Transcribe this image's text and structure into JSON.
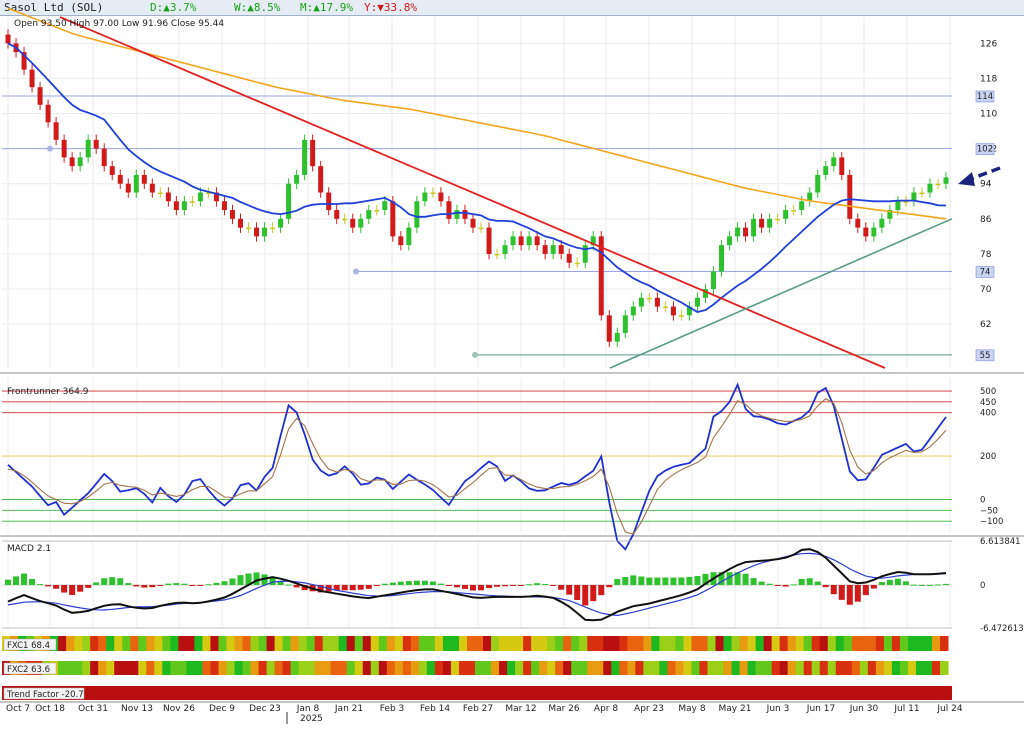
{
  "header": {
    "ticker": "Sasol Ltd (SOL)",
    "day": "D:▲3.7%",
    "week": "W:▲8.5%",
    "month": "M:▲17.9%",
    "year": "Y:▼33.8%"
  },
  "ohlc_line": "Open 93.50  High 97.00  Low 91.96  Close 95.44",
  "colors": {
    "bull": "#2ec12e",
    "bear": "#d11a1a",
    "doji": "#c8c81e",
    "ma_short": "#1f3fd6",
    "ma_long": "#f4a51c",
    "trend_red": "#e02222",
    "trend_green": "#5a9a87"
  },
  "chart_data": [
    {
      "type": "candlestick",
      "title": "Sasol Ltd (SOL)",
      "ylim": [
        52,
        132
      ],
      "y_ticks": [
        126,
        118,
        110,
        102,
        94,
        86,
        78,
        70,
        62
      ],
      "close_approx": [
        126,
        124,
        120,
        116,
        112,
        108,
        104,
        100,
        98,
        100,
        104,
        102,
        98,
        96,
        94,
        92,
        96,
        94,
        92,
        92,
        90,
        88,
        90,
        90,
        92,
        92,
        90,
        88,
        86,
        84,
        84,
        82,
        84,
        84,
        86,
        94,
        96,
        104,
        98,
        92,
        88,
        86,
        86,
        84,
        86,
        88,
        88,
        90,
        82,
        80,
        84,
        90,
        92,
        92,
        90,
        86,
        88,
        86,
        84,
        84,
        78,
        78,
        80,
        82,
        80,
        82,
        80,
        78,
        80,
        78,
        76,
        76,
        80,
        82,
        64,
        58,
        60,
        64,
        66,
        68,
        68,
        66,
        66,
        64,
        64,
        66,
        68,
        70,
        74,
        80,
        82,
        84,
        82,
        86,
        84,
        86,
        86,
        88,
        88,
        90,
        92,
        96,
        98,
        100,
        96,
        86,
        84,
        82,
        84,
        86,
        88,
        90,
        90,
        92,
        92,
        94,
        94,
        95.44
      ],
      "highlight_levels": [
        {
          "label": "114",
          "value": 114
        },
        {
          "label": "102",
          "value": 102
        },
        {
          "label": "74",
          "value": 74
        },
        {
          "label": "55",
          "value": 55
        }
      ],
      "moving_averages": [
        {
          "name": "short",
          "color": "#1f3fd6"
        },
        {
          "name": "long",
          "color": "#f4a51c"
        }
      ],
      "annotations": [
        "blue arrow pointing at last price"
      ]
    },
    {
      "type": "line",
      "title": "Frontrunner 364.9",
      "ylim": [
        -150,
        560
      ],
      "y_ticks": [
        500,
        450,
        400,
        200,
        0,
        -50,
        -100
      ],
      "levels": [
        500,
        450,
        400,
        200,
        0,
        -50,
        -100
      ],
      "series": [
        {
          "name": "Frontrunner",
          "values": [
            160,
            120,
            80,
            40,
            -30,
            -10,
            -80,
            -20,
            10,
            60,
            120,
            80,
            20,
            60,
            40,
            -20,
            60,
            0,
            -20,
            80,
            100,
            40,
            -10,
            -40,
            60,
            80,
            40,
            120,
            160,
            440,
            420,
            300,
            160,
            120,
            100,
            160,
            120,
            60,
            80,
            120,
            40,
            80,
            120,
            80,
            60,
            20,
            -30,
            40,
            100,
            120,
            180,
            160,
            80,
            120,
            60,
            40,
            40,
            60,
            80,
            60,
            100,
            120,
            200,
            -60,
            -260,
            -200,
            -80,
            40,
            120,
            140,
            160,
            160,
            200,
            240,
            440,
            380,
            560,
            420,
            380,
            380,
            360,
            340,
            360,
            380,
            420,
            540,
            480,
            300,
            120,
            80,
            100,
            200,
            220,
            240,
            260,
            200,
            260,
            320,
            380
          ]
        },
        {
          "name": "Signal",
          "values": [
            140,
            130,
            100,
            60,
            20,
            0,
            -20,
            -20,
            0,
            30,
            70,
            80,
            60,
            60,
            50,
            20,
            30,
            20,
            10,
            40,
            60,
            60,
            30,
            0,
            20,
            40,
            40,
            80,
            120,
            300,
            380,
            340,
            240,
            160,
            120,
            140,
            130,
            90,
            80,
            100,
            70,
            70,
            90,
            90,
            80,
            50,
            10,
            20,
            60,
            90,
            140,
            150,
            110,
            110,
            80,
            60,
            50,
            50,
            60,
            60,
            80,
            100,
            140,
            40,
            -120,
            -180,
            -120,
            -30,
            60,
            100,
            130,
            150,
            170,
            200,
            320,
            350,
            460,
            440,
            400,
            380,
            370,
            360,
            360,
            370,
            390,
            460,
            470,
            370,
            220,
            130,
            110,
            160,
            190,
            210,
            230,
            210,
            230,
            270,
            320
          ]
        }
      ]
    },
    {
      "type": "line",
      "title": "MACD 2.1",
      "y_ticks": [
        "6.613841",
        "0",
        "-6.472613"
      ],
      "ylim": [
        -6.472613,
        6.613841
      ],
      "series": [
        {
          "name": "MACD",
          "values": [
            -2.5,
            -1.5,
            -2.4,
            -3.0,
            -4.2,
            -4.0,
            -3.2,
            -2.8,
            -3.4,
            -3.6,
            -3.0,
            -2.6,
            -2.8,
            -2.4,
            -1.8,
            -0.5,
            0.8,
            1.2,
            0.6,
            -0.2,
            -0.9,
            -1.3,
            -1.7,
            -2.0,
            -1.6,
            -1.2,
            -0.8,
            -0.6,
            -1.0,
            -1.5,
            -2.0,
            -1.8,
            -1.8,
            -1.8,
            -1.6,
            -2.0,
            -3.4,
            -5.4,
            -5.2,
            -4.0,
            -3.2,
            -2.8,
            -2.2,
            -1.6,
            -0.8,
            0.8,
            2.2,
            3.4,
            3.6,
            3.8,
            4.2,
            5.6,
            4.8,
            2.5,
            0.2,
            0.4,
            1.4,
            2.0,
            1.6,
            1.6,
            1.8
          ]
        },
        {
          "name": "Signal",
          "values": [
            -3.0,
            -2.6,
            -2.5,
            -2.7,
            -3.2,
            -3.6,
            -3.8,
            -3.6,
            -3.3,
            -3.3,
            -3.1,
            -2.8,
            -2.7,
            -2.5,
            -2.2,
            -1.5,
            -0.4,
            0.5,
            0.6,
            0.3,
            -0.2,
            -0.8,
            -1.2,
            -1.6,
            -1.7,
            -1.5,
            -1.2,
            -1.0,
            -1.0,
            -1.2,
            -1.4,
            -1.6,
            -1.7,
            -1.8,
            -1.8,
            -1.9,
            -2.4,
            -3.4,
            -4.3,
            -4.6,
            -4.1,
            -3.5,
            -2.9,
            -2.3,
            -1.6,
            -0.4,
            1.0,
            2.2,
            3.2,
            3.8,
            4.4,
            4.8,
            4.6,
            3.6,
            2.2,
            1.2,
            1.0,
            1.4,
            1.6,
            1.6,
            1.7
          ]
        }
      ]
    },
    {
      "type": "heatmap",
      "title": "FXC1 68.4"
    },
    {
      "type": "heatmap",
      "title": "FXC2 63.6"
    },
    {
      "type": "bar",
      "title": "Trend Factor -20.7",
      "values": [
        -20.7
      ]
    }
  ],
  "x_axis": {
    "labels": [
      "Oct 7",
      "Oct 18",
      "Oct 31",
      "Nov 13",
      "Nov 26",
      "Dec 9",
      "Dec 23",
      "Jan 8",
      "Jan 21",
      "Feb 3",
      "Feb 14",
      "Feb 27",
      "Mar 12",
      "Mar 26",
      "Apr 8",
      "Apr 23",
      "May 8",
      "May 21",
      "Jun 3",
      "Jun 17",
      "Jun 30",
      "Jul 11",
      "Jul 24"
    ],
    "year_label": "2025"
  }
}
